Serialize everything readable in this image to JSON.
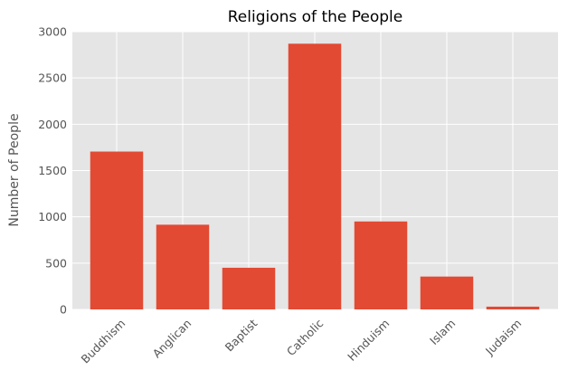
{
  "chart_data": {
    "type": "bar",
    "title": "Religions of the People",
    "xlabel": "",
    "ylabel": "Number of People",
    "categories": [
      "Buddhism",
      "Anglican",
      "Baptist",
      "Catholic",
      "Hinduism",
      "Islam",
      "Judaism"
    ],
    "values": [
      1705,
      915,
      450,
      2870,
      950,
      355,
      30
    ],
    "ylim": [
      0,
      3000
    ],
    "yticks": [
      "0",
      "500",
      "1000",
      "1500",
      "2000",
      "2500",
      "3000"
    ],
    "grid": true,
    "colors": {
      "bar": "#E24A33",
      "background": "#E5E5E5",
      "grid": "#FFFFFF",
      "tick_label": "#555555"
    }
  }
}
